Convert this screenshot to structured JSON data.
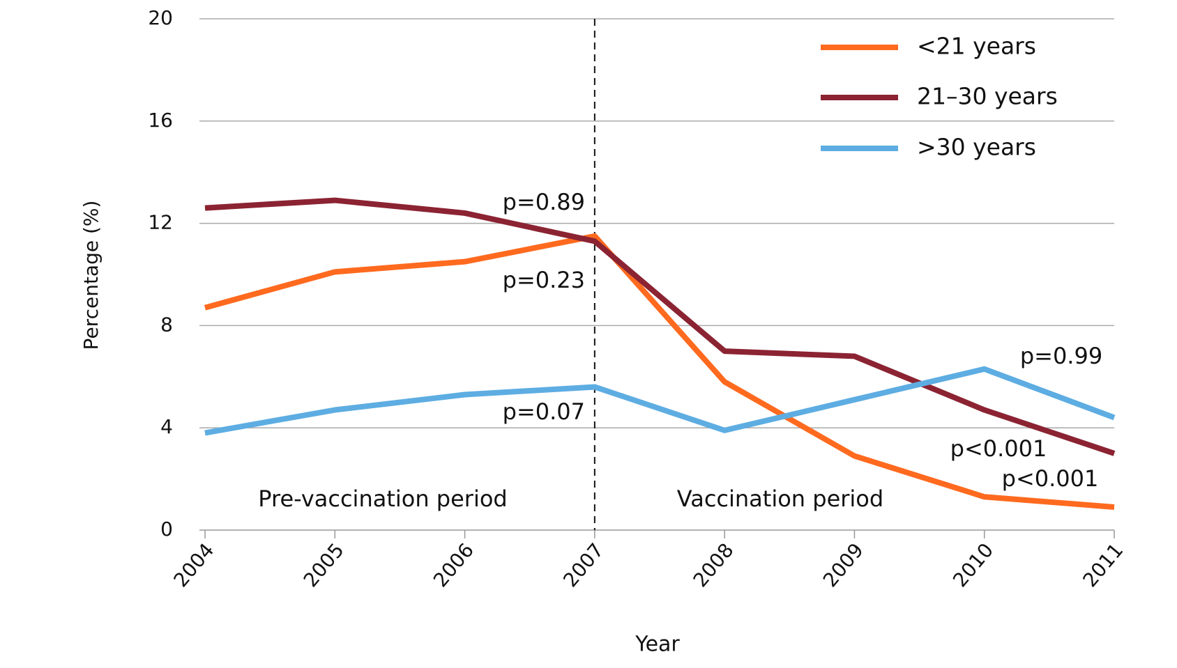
{
  "chart_data": {
    "type": "line",
    "x_label": "Year",
    "y_label": "Percentage (%)",
    "x": [
      2004,
      2005,
      2006,
      2007,
      2008,
      2009,
      2010,
      2011
    ],
    "xlim": [
      2004,
      2011
    ],
    "xticks": [
      2004,
      2005,
      2006,
      2007,
      2008,
      2009,
      2010,
      2011
    ],
    "ylim": [
      0,
      20
    ],
    "yticks": [
      0,
      4,
      8,
      12,
      16,
      20
    ],
    "grid": true,
    "legend": "upper right",
    "divider_x": 2007,
    "series": [
      {
        "name": "<21 years",
        "color": "#ff6a1f",
        "values": [
          8.7,
          10.1,
          10.5,
          11.5,
          5.8,
          2.9,
          1.3,
          0.9
        ]
      },
      {
        "name": "21–30 years",
        "color": "#8b2332",
        "values": [
          12.6,
          12.9,
          12.4,
          11.3,
          7.0,
          6.8,
          4.7,
          3.0
        ]
      },
      {
        "name": ">30 years",
        "color": "#5dade2",
        "values": [
          3.8,
          4.7,
          5.3,
          5.6,
          3.9,
          5.1,
          6.3,
          4.4
        ]
      }
    ],
    "annotations": [
      "p=0.89",
      "p=0.23",
      "p=0.07",
      "p=0.99",
      "p<0.001",
      "p<0.001",
      "Pre-vaccination period",
      "Vaccination period"
    ]
  }
}
